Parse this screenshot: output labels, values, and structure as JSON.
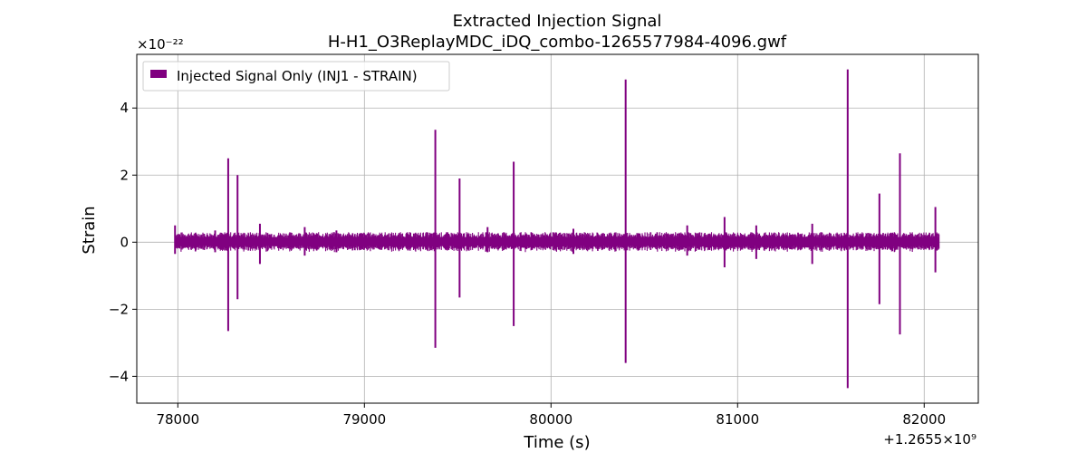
{
  "chart_data": {
    "type": "line",
    "title": "Extracted Injection Signal",
    "subtitle": "H-H1_O3ReplayMDC_iDQ_combo-1265577984-4096.gwf",
    "xlabel": "Time (s)",
    "ylabel": "Strain",
    "x_offset_label": "+1.2655×10⁹",
    "y_scale_label": "×10⁻²²",
    "xlim": [
      77780,
      82290
    ],
    "ylim": [
      -4.8,
      5.6
    ],
    "x_ticks": [
      78000,
      79000,
      80000,
      81000,
      82000
    ],
    "x_tick_labels": [
      "78000",
      "79000",
      "80000",
      "81000",
      "82000"
    ],
    "y_ticks": [
      -4,
      -2,
      0,
      2,
      4
    ],
    "y_tick_labels": [
      "−4",
      "−2",
      "0",
      "2",
      "4"
    ],
    "grid": true,
    "legend_position": "top-left",
    "series": [
      {
        "name": "Injected Signal Only (INJ1 - STRAIN)",
        "color": "#800080",
        "x_range": [
          77985,
          82080
        ],
        "baseline_envelope": 0.3,
        "spikes": [
          {
            "x": 77985,
            "max": 0.5,
            "min": -0.35
          },
          {
            "x": 78200,
            "max": 0.35,
            "min": -0.3
          },
          {
            "x": 78270,
            "max": 2.5,
            "min": -2.65
          },
          {
            "x": 78320,
            "max": 2.0,
            "min": -1.7
          },
          {
            "x": 78440,
            "max": 0.55,
            "min": -0.65
          },
          {
            "x": 78680,
            "max": 0.45,
            "min": -0.4
          },
          {
            "x": 78850,
            "max": 0.35,
            "min": -0.3
          },
          {
            "x": 79380,
            "max": 3.35,
            "min": -3.15
          },
          {
            "x": 79510,
            "max": 1.9,
            "min": -1.65
          },
          {
            "x": 79660,
            "max": 0.45,
            "min": -0.3
          },
          {
            "x": 79800,
            "max": 2.4,
            "min": -2.5
          },
          {
            "x": 80120,
            "max": 0.4,
            "min": -0.35
          },
          {
            "x": 80400,
            "max": 4.85,
            "min": -3.6
          },
          {
            "x": 80730,
            "max": 0.5,
            "min": -0.4
          },
          {
            "x": 80930,
            "max": 0.75,
            "min": -0.75
          },
          {
            "x": 81100,
            "max": 0.5,
            "min": -0.5
          },
          {
            "x": 81400,
            "max": 0.55,
            "min": -0.65
          },
          {
            "x": 81590,
            "max": 5.15,
            "min": -4.35
          },
          {
            "x": 81760,
            "max": 1.45,
            "min": -1.85
          },
          {
            "x": 81870,
            "max": 2.65,
            "min": -2.75
          },
          {
            "x": 82060,
            "max": 1.05,
            "min": -0.9
          }
        ]
      }
    ]
  }
}
